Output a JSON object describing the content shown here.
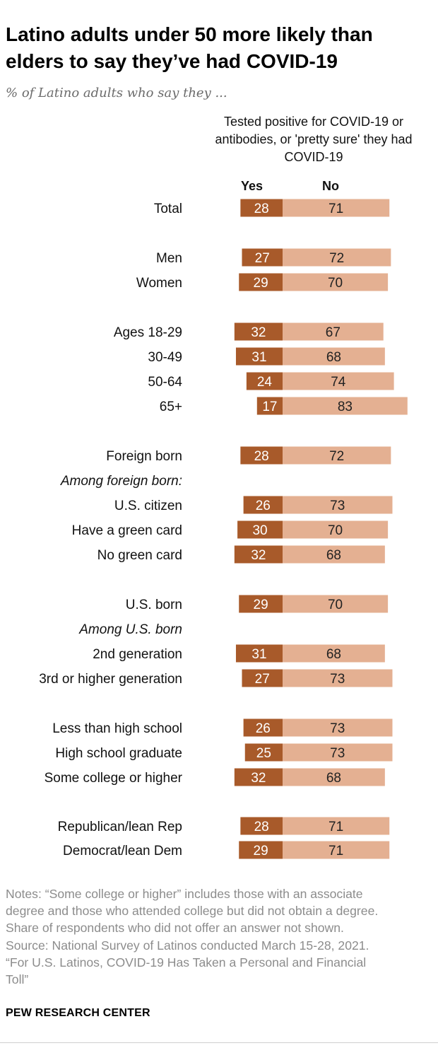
{
  "title": "Latino adults under 50 more likely than elders to say they’ve had COVID-19",
  "subtitle": "% of Latino adults who say they ...",
  "column_header": "Tested positive for COVID-19 or antibodies, or 'pretty sure' they had COVID-19",
  "notes": [
    "Notes: “Some college or higher” includes those with an associate",
    "degree and those who attended college but did not obtain a degree.",
    "Share of respondents who did not offer an answer not shown.",
    "Source: National Survey of Latinos conducted March 15-28, 2021.",
    "“For U.S. Latinos, COVID-19 Has Taken a Personal and Financial",
    "Toll”"
  ],
  "source_brand": "PEW RESEARCH CENTER",
  "colors": {
    "yes": "#a85a2a",
    "no": "#e4b092",
    "label_on_dark": "#ffffff",
    "label_on_light": "#222222"
  },
  "chart_data": {
    "type": "bar",
    "orientation": "horizontal",
    "stacked": true,
    "series": [
      {
        "name": "Yes",
        "values": [
          28,
          27,
          29,
          32,
          31,
          24,
          17,
          28,
          null,
          26,
          30,
          32,
          29,
          null,
          31,
          27,
          26,
          25,
          32,
          28,
          29
        ]
      },
      {
        "name": "No",
        "values": [
          71,
          72,
          70,
          67,
          68,
          74,
          83,
          72,
          null,
          73,
          70,
          68,
          70,
          null,
          68,
          73,
          73,
          73,
          68,
          71,
          71
        ]
      }
    ],
    "categories": [
      "Total",
      "Men",
      "Women",
      "Ages 18-29",
      "30-49",
      "50-64",
      "65+",
      "Foreign born",
      "Among foreign born:",
      "U.S. citizen",
      "Have a green card",
      "No green card",
      "U.S. born",
      "Among U.S. born",
      "2nd generation",
      "3rd or higher generation",
      "Less than high school",
      "High school graduate",
      "Some college or higher",
      "Republican/lean Rep",
      "Democrat/lean Dem"
    ],
    "subheaders": [
      "Among foreign born:",
      "Among U.S. born"
    ]
  }
}
